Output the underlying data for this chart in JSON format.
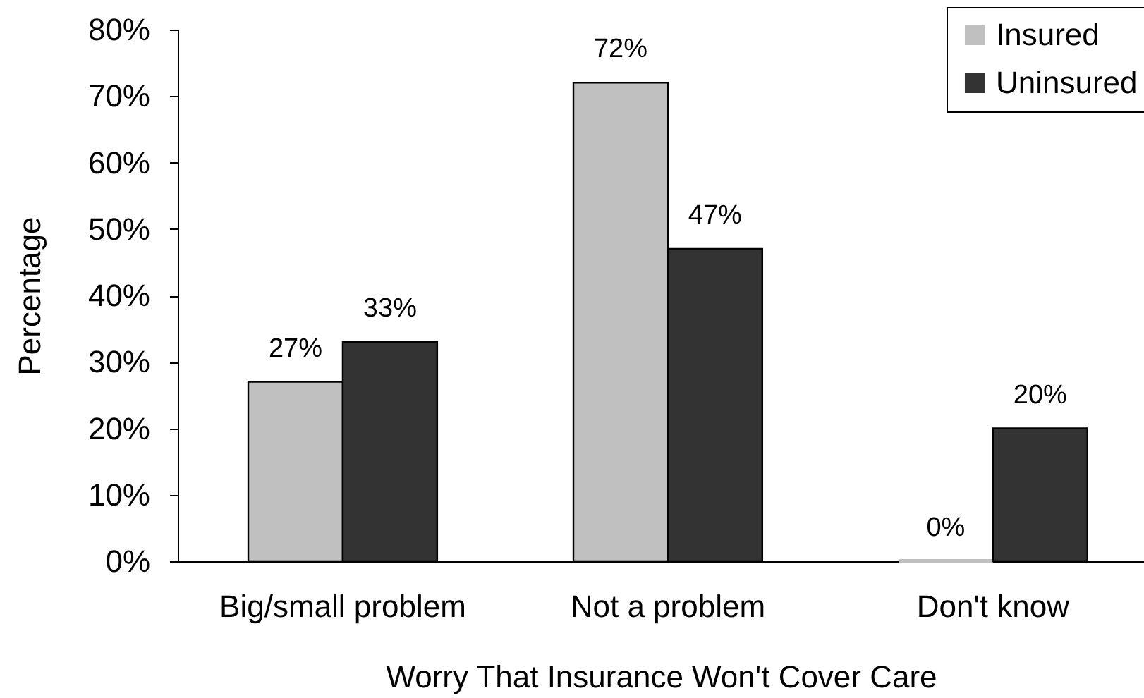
{
  "chart_data": {
    "type": "bar",
    "xlabel": "Worry That Insurance Won't Cover Care",
    "ylabel": "Percentage",
    "categories": [
      "Big/small problem",
      "Not a problem",
      "Don't know"
    ],
    "series": [
      {
        "name": "Insured",
        "color": "#c0c0c0",
        "values": [
          27,
          72,
          0
        ],
        "value_labels": [
          "27%",
          "72%",
          "0%"
        ]
      },
      {
        "name": "Uninsured",
        "color": "#333333",
        "values": [
          33,
          47,
          20
        ],
        "value_labels": [
          "33%",
          "47%",
          "20%"
        ]
      }
    ],
    "ylim": [
      0,
      80
    ],
    "yticks": [
      {
        "value": 0,
        "label": "0%"
      },
      {
        "value": 10,
        "label": "10%"
      },
      {
        "value": 20,
        "label": "20%"
      },
      {
        "value": 30,
        "label": "30%"
      },
      {
        "value": 40,
        "label": "40%"
      },
      {
        "value": 50,
        "label": "50%"
      },
      {
        "value": 60,
        "label": "60%"
      },
      {
        "value": 70,
        "label": "70%"
      },
      {
        "value": 80,
        "label": "80%"
      }
    ],
    "legend": "top right",
    "grid": false
  }
}
